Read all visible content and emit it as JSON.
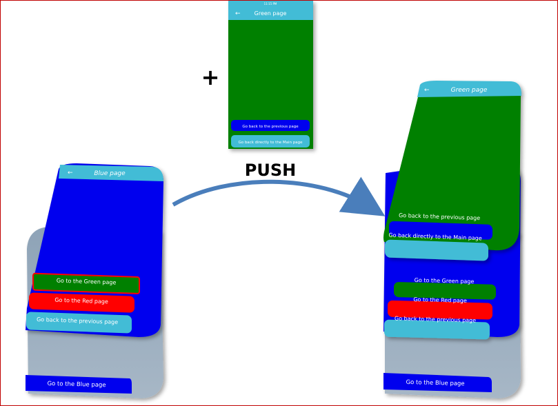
{
  "plus": "+",
  "push_label": "PUSH",
  "colors": {
    "blue": "#0000ee",
    "green": "#008000",
    "red": "#ff0000",
    "cyan": "#42bcd6",
    "gray": "#93a9bd",
    "arrow": "#4a7ebb"
  },
  "new_page": {
    "title": "Green page",
    "status_time": "11:15 PM",
    "back_button": "Go back to the previous page",
    "main_button": "Go back directly to the Main page"
  },
  "before_stack": {
    "top_page": {
      "title": "Blue page",
      "buttons": [
        "Go to the Green page",
        "Go to the Red page",
        "Go back to the previous page"
      ]
    },
    "bottom_page": {
      "button": "Go to the Blue page"
    }
  },
  "after_stack": {
    "top_page": {
      "title": "Green page",
      "buttons": [
        "Go back to the previous page",
        "Go back directly to the Main page"
      ]
    },
    "middle_page": {
      "buttons": [
        "Go to the Green page",
        "Go to the Red page",
        "Go back to the previous page"
      ]
    },
    "bottom_page": {
      "button": "Go to the Blue page"
    }
  }
}
